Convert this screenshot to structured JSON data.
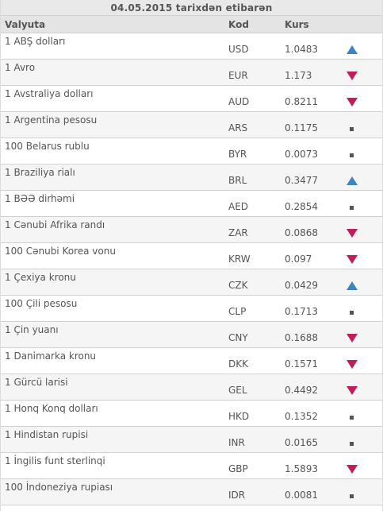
{
  "title": "04.05.2015 tarixdən etibarən",
  "columns": {
    "currency": "Valyuta",
    "code": "Kod",
    "rate": "Kurs"
  },
  "colors": {
    "up": "#3f84c2",
    "down": "#c21c5a",
    "same": "#555555"
  },
  "rows": [
    {
      "name": "1 ABŞ dolları",
      "code": "USD",
      "rate": "1.0483",
      "trend": "up"
    },
    {
      "name": "1 Avro",
      "code": "EUR",
      "rate": "1.173",
      "trend": "down"
    },
    {
      "name": "1 Avstraliya dolları",
      "code": "AUD",
      "rate": "0.8211",
      "trend": "down"
    },
    {
      "name": "1 Argentina pesosu",
      "code": "ARS",
      "rate": "0.1175",
      "trend": "same"
    },
    {
      "name": "100 Belarus rublu",
      "code": "BYR",
      "rate": "0.0073",
      "trend": "same"
    },
    {
      "name": "1 Braziliya rialı",
      "code": "BRL",
      "rate": "0.3477",
      "trend": "up"
    },
    {
      "name": "1 BƏƏ dirhəmi",
      "code": "AED",
      "rate": "0.2854",
      "trend": "same"
    },
    {
      "name": "1 Cənubi Afrika randı",
      "code": "ZAR",
      "rate": "0.0868",
      "trend": "down"
    },
    {
      "name": "100 Cənubi Korea vonu",
      "code": "KRW",
      "rate": "0.097",
      "trend": "down"
    },
    {
      "name": "1 Çexiya kronu",
      "code": "CZK",
      "rate": "0.0429",
      "trend": "up"
    },
    {
      "name": "100 Çili pesosu",
      "code": "CLP",
      "rate": "0.1713",
      "trend": "same"
    },
    {
      "name": "1 Çin yuanı",
      "code": "CNY",
      "rate": "0.1688",
      "trend": "down"
    },
    {
      "name": "1 Danimarka kronu",
      "code": "DKK",
      "rate": "0.1571",
      "trend": "down"
    },
    {
      "name": "1 Gürcü larisi",
      "code": "GEL",
      "rate": "0.4492",
      "trend": "down"
    },
    {
      "name": "1 Honq Konq dolları",
      "code": "HKD",
      "rate": "0.1352",
      "trend": "same"
    },
    {
      "name": "1 Hindistan rupisi",
      "code": "INR",
      "rate": "0.0165",
      "trend": "same"
    },
    {
      "name": "1 İngilis funt sterlinqi",
      "code": "GBP",
      "rate": "1.5893",
      "trend": "down"
    },
    {
      "name": "100 İndoneziya rupiası",
      "code": "IDR",
      "rate": "0.0081",
      "trend": "same"
    }
  ]
}
